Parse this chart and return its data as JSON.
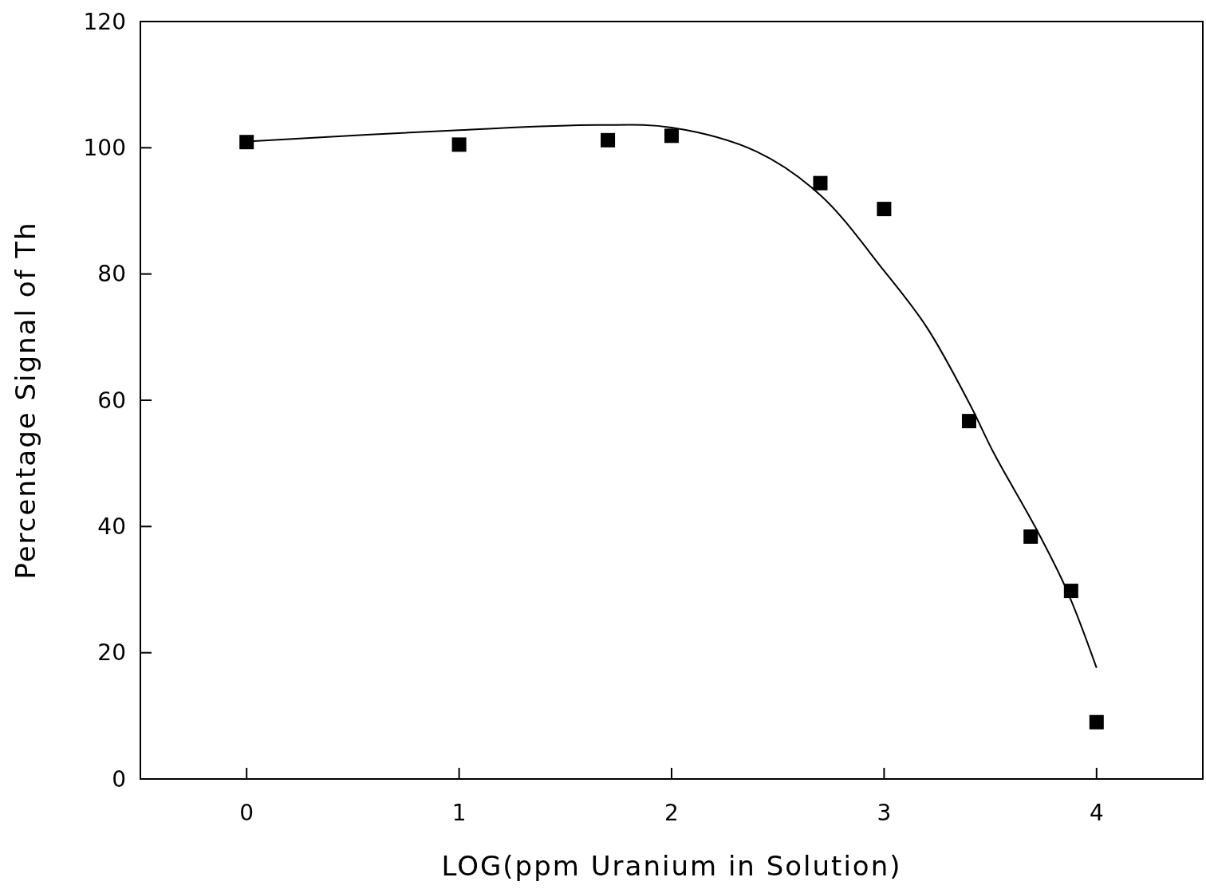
{
  "chart_data": {
    "type": "scatter",
    "xlabel": "LOG(ppm Uranium in Solution)",
    "ylabel": "Percentage Signal of Th",
    "xlim": [
      -0.5,
      4.5
    ],
    "xticks": [
      0,
      1,
      2,
      3,
      4
    ],
    "ylim": [
      0,
      120
    ],
    "yticks": [
      0,
      20,
      40,
      60,
      80,
      100,
      120
    ],
    "grid": false,
    "series": [
      {
        "marker": "square",
        "color": "#000000",
        "x": [
          0,
          1,
          1.7,
          2,
          2.7,
          3,
          3.4,
          3.69,
          3.88,
          4
        ],
        "values": [
          100.9,
          100.5,
          101.2,
          101.9,
          94.4,
          90.3,
          56.7,
          38.4,
          29.8,
          9.0
        ]
      },
      {
        "type": "line",
        "marker": "none",
        "line_style": "solid",
        "color": "#000000",
        "x": [
          0,
          1,
          1.65,
          2,
          2.4,
          2.7,
          3,
          3.2,
          3.4,
          3.52,
          3.71,
          3.86,
          4
        ],
        "values": [
          101,
          102.8,
          103.6,
          103.2,
          99.4,
          92.5,
          80.5,
          71.6,
          59.6,
          51.4,
          40,
          29.9,
          17.6
        ]
      }
    ]
  }
}
